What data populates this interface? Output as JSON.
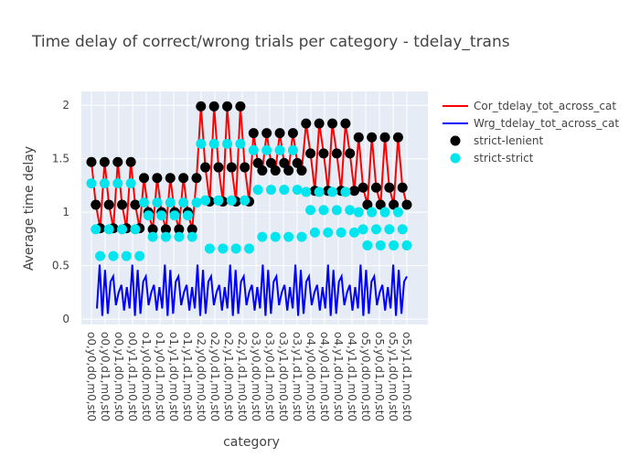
{
  "chart_data": {
    "type": "line",
    "title": "Time delay of correct/wrong trials per category - tdelay_trans",
    "xlabel": "category",
    "ylabel": "Average time delay",
    "ylim": [
      -0.05,
      2.13
    ],
    "yticks": [
      0,
      0.5,
      1,
      1.5,
      2
    ],
    "grid": true,
    "legend_position": "top-right",
    "categories": [
      "o0,y0,d0,m0,st0",
      "o0,y0,d1,m0,st0",
      "o0,y1,d0,m0,st0",
      "o0,y1,d1,m0,st0",
      "o1,y0,d0,m0,st0",
      "o1,y0,d1,m0,st0",
      "o1,y1,d0,m0,st0",
      "o1,y1,d1,m0,st0",
      "o2,y0,d0,m0,st0",
      "o2,y0,d1,m0,st0",
      "o2,y1,d0,m0,st0",
      "o2,y1,d1,m0,st0",
      "o3,y0,d0,m0,st0",
      "o3,y0,d1,m0,st0",
      "o3,y1,d0,m0,st0",
      "o3,y1,d1,m0,st0",
      "o4,y0,d0,m0,st0",
      "o4,y0,d1,m0,st0",
      "o4,y1,d0,m0,st0",
      "o4,y1,d1,m0,st0",
      "o5,y0,d0,m0,st0",
      "o5,y0,d1,m0,st0",
      "o5,y1,d0,m0,st0",
      "o5,y1,d1,m0,st0"
    ],
    "groups": [
      {
        "n": 12,
        "top": [
          1.47,
          1.07,
          0.85
        ],
        "cyan": [
          1.27,
          0.84,
          0.59
        ]
      },
      {
        "n": 13,
        "top": [
          1.32,
          1.0,
          0.84
        ],
        "cyan": [
          1.09,
          0.97,
          0.77
        ]
      },
      {
        "n": 12,
        "top": [
          1.99,
          1.42,
          1.1
        ],
        "cyan": [
          1.64,
          1.11,
          0.66
        ]
      },
      {
        "n": 12,
        "top": [
          1.74,
          1.46,
          1.39
        ],
        "cyan": [
          1.58,
          1.21,
          0.77
        ]
      },
      {
        "n": 12,
        "top": [
          1.83,
          1.55,
          1.2
        ],
        "cyan": [
          1.19,
          1.02,
          0.81
        ]
      },
      {
        "n": 12,
        "top": [
          1.7,
          1.23,
          1.07
        ],
        "cyan": [
          1.0,
          0.84,
          0.69
        ]
      }
    ],
    "wrong_pattern": [
      0.1,
      0.51,
      0.03,
      0.46,
      0.05,
      0.35,
      0.4,
      0.13,
      0.25,
      0.32,
      0.08,
      0.3
    ],
    "series": [
      {
        "name": "Cor_tdelay_tot_across_cat",
        "color": "#ff0000",
        "mode": "line"
      },
      {
        "name": "Wrg_tdelay_tot_across_cat",
        "color": "#0000ff",
        "mode": "line"
      },
      {
        "name": "strict-lenient",
        "color": "#000000",
        "mode": "markers"
      },
      {
        "name": "strict-strict",
        "color": "#00e5ee",
        "mode": "markers"
      }
    ]
  }
}
